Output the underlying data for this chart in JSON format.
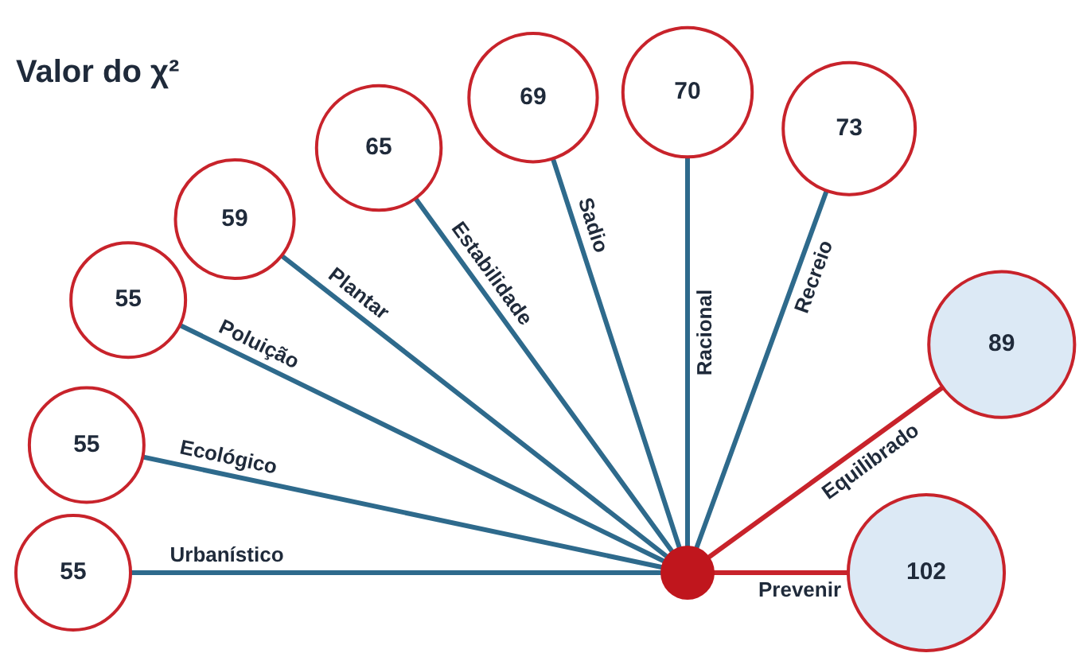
{
  "chart_data": {
    "type": "other",
    "title": "Valor do χ²",
    "categories": [
      "Urbanístico",
      "Ecológico",
      "Poluição",
      "Plantar",
      "Estabilidade",
      "Sadio",
      "Racional",
      "Recreio",
      "Equilibrado",
      "Prevenir"
    ],
    "series": [
      {
        "color": "#ffffff",
        "values": [
          55,
          55,
          55,
          59,
          65,
          69,
          70,
          73,
          null,
          null
        ]
      },
      {
        "color": "#dce9f5",
        "values": [
          null,
          null,
          null,
          null,
          null,
          null,
          null,
          null,
          89,
          102
        ]
      }
    ],
    "data_labels": true
  }
}
